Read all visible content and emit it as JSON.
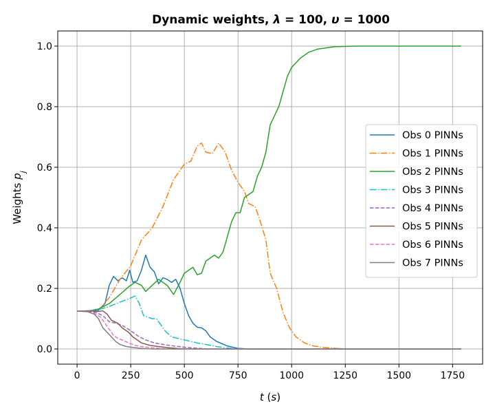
{
  "chart_data": {
    "type": "line",
    "title_parts": [
      {
        "text": "Dynamic weights, ",
        "italic": false
      },
      {
        "text": "λ",
        "italic": true
      },
      {
        "text": " = 100, ",
        "italic": false
      },
      {
        "text": "υ",
        "italic": true
      },
      {
        "text": " = 1000",
        "italic": false
      }
    ],
    "xlabel_parts": [
      {
        "text": "t",
        "italic": true
      },
      {
        "text": " (",
        "italic": false
      },
      {
        "text": "s",
        "italic": true
      },
      {
        "text": ")",
        "italic": false
      }
    ],
    "ylabel_parts": [
      {
        "text": "Weights ",
        "italic": false
      },
      {
        "text": "p",
        "italic": true
      },
      {
        "text": "j",
        "italic": true,
        "sub": true
      }
    ],
    "xlim": [
      -90,
      1890
    ],
    "ylim": [
      -0.05,
      1.05
    ],
    "xticks": [
      0,
      250,
      500,
      750,
      1000,
      1250,
      1500,
      1750
    ],
    "xtick_labels": [
      "0",
      "250",
      "500",
      "750",
      "1000",
      "1250",
      "1500",
      "1750"
    ],
    "yticks": [
      0.0,
      0.2,
      0.4,
      0.6,
      0.8,
      1.0
    ],
    "ytick_labels": [
      "0.0",
      "0.2",
      "0.4",
      "0.6",
      "0.8",
      "1.0"
    ],
    "grid": true,
    "legend_position": "center-right",
    "series": [
      {
        "name": "Obs 0 PINNs",
        "color": "#1f77b4",
        "dash": "solid",
        "points": [
          [
            0,
            0.125
          ],
          [
            50,
            0.124
          ],
          [
            100,
            0.128
          ],
          [
            130,
            0.15
          ],
          [
            150,
            0.21
          ],
          [
            170,
            0.24
          ],
          [
            190,
            0.225
          ],
          [
            210,
            0.235
          ],
          [
            230,
            0.225
          ],
          [
            245,
            0.26
          ],
          [
            260,
            0.22
          ],
          [
            280,
            0.225
          ],
          [
            300,
            0.26
          ],
          [
            320,
            0.31
          ],
          [
            340,
            0.27
          ],
          [
            360,
            0.255
          ],
          [
            380,
            0.215
          ],
          [
            400,
            0.235
          ],
          [
            420,
            0.23
          ],
          [
            440,
            0.22
          ],
          [
            460,
            0.23
          ],
          [
            480,
            0.2
          ],
          [
            500,
            0.15
          ],
          [
            520,
            0.11
          ],
          [
            540,
            0.085
          ],
          [
            560,
            0.072
          ],
          [
            580,
            0.07
          ],
          [
            600,
            0.06
          ],
          [
            620,
            0.04
          ],
          [
            650,
            0.025
          ],
          [
            700,
            0.01
          ],
          [
            750,
            0.002
          ],
          [
            800,
            0.0
          ],
          [
            1790,
            0.0
          ]
        ]
      },
      {
        "name": "Obs 1 PINNs",
        "color": "#ff7f0e",
        "dash": "dashdot",
        "points": [
          [
            0,
            0.125
          ],
          [
            50,
            0.125
          ],
          [
            100,
            0.128
          ],
          [
            150,
            0.17
          ],
          [
            200,
            0.23
          ],
          [
            250,
            0.275
          ],
          [
            300,
            0.36
          ],
          [
            350,
            0.4
          ],
          [
            400,
            0.47
          ],
          [
            450,
            0.56
          ],
          [
            500,
            0.61
          ],
          [
            530,
            0.62
          ],
          [
            560,
            0.67
          ],
          [
            580,
            0.68
          ],
          [
            600,
            0.65
          ],
          [
            630,
            0.645
          ],
          [
            660,
            0.68
          ],
          [
            690,
            0.65
          ],
          [
            720,
            0.59
          ],
          [
            750,
            0.55
          ],
          [
            780,
            0.52
          ],
          [
            800,
            0.48
          ],
          [
            830,
            0.47
          ],
          [
            850,
            0.43
          ],
          [
            880,
            0.36
          ],
          [
            900,
            0.25
          ],
          [
            930,
            0.2
          ],
          [
            960,
            0.12
          ],
          [
            990,
            0.07
          ],
          [
            1020,
            0.04
          ],
          [
            1060,
            0.02
          ],
          [
            1100,
            0.01
          ],
          [
            1150,
            0.005
          ],
          [
            1250,
            0.0
          ],
          [
            1790,
            0.0
          ]
        ]
      },
      {
        "name": "Obs 2 PINNs",
        "color": "#2ca02c",
        "dash": "solid",
        "points": [
          [
            0,
            0.125
          ],
          [
            50,
            0.125
          ],
          [
            100,
            0.132
          ],
          [
            150,
            0.15
          ],
          [
            200,
            0.18
          ],
          [
            240,
            0.205
          ],
          [
            270,
            0.22
          ],
          [
            300,
            0.21
          ],
          [
            320,
            0.19
          ],
          [
            350,
            0.21
          ],
          [
            380,
            0.23
          ],
          [
            420,
            0.21
          ],
          [
            450,
            0.18
          ],
          [
            480,
            0.22
          ],
          [
            500,
            0.25
          ],
          [
            520,
            0.26
          ],
          [
            540,
            0.27
          ],
          [
            560,
            0.245
          ],
          [
            580,
            0.25
          ],
          [
            600,
            0.29
          ],
          [
            620,
            0.3
          ],
          [
            640,
            0.31
          ],
          [
            660,
            0.3
          ],
          [
            680,
            0.32
          ],
          [
            700,
            0.37
          ],
          [
            720,
            0.42
          ],
          [
            740,
            0.45
          ],
          [
            760,
            0.45
          ],
          [
            780,
            0.5
          ],
          [
            800,
            0.51
          ],
          [
            820,
            0.52
          ],
          [
            840,
            0.57
          ],
          [
            860,
            0.6
          ],
          [
            880,
            0.65
          ],
          [
            900,
            0.74
          ],
          [
            920,
            0.77
          ],
          [
            940,
            0.8
          ],
          [
            960,
            0.85
          ],
          [
            980,
            0.9
          ],
          [
            1000,
            0.93
          ],
          [
            1040,
            0.96
          ],
          [
            1080,
            0.98
          ],
          [
            1120,
            0.99
          ],
          [
            1200,
            0.998
          ],
          [
            1300,
            1.0
          ],
          [
            1790,
            1.0
          ]
        ]
      },
      {
        "name": "Obs 3 PINNs",
        "color": "#17becf",
        "dash": "dashdot",
        "points": [
          [
            0,
            0.125
          ],
          [
            50,
            0.125
          ],
          [
            100,
            0.13
          ],
          [
            150,
            0.14
          ],
          [
            200,
            0.155
          ],
          [
            240,
            0.165
          ],
          [
            270,
            0.175
          ],
          [
            290,
            0.15
          ],
          [
            310,
            0.11
          ],
          [
            330,
            0.105
          ],
          [
            350,
            0.1
          ],
          [
            370,
            0.1
          ],
          [
            390,
            0.08
          ],
          [
            410,
            0.06
          ],
          [
            440,
            0.04
          ],
          [
            470,
            0.035
          ],
          [
            500,
            0.03
          ],
          [
            530,
            0.025
          ],
          [
            560,
            0.02
          ],
          [
            600,
            0.015
          ],
          [
            650,
            0.008
          ],
          [
            700,
            0.003
          ],
          [
            750,
            0.0
          ],
          [
            1790,
            0.0
          ]
        ]
      },
      {
        "name": "Obs 4 PINNs",
        "color": "#9467bd",
        "dash": "dashed",
        "points": [
          [
            0,
            0.125
          ],
          [
            50,
            0.125
          ],
          [
            90,
            0.12
          ],
          [
            120,
            0.11
          ],
          [
            150,
            0.09
          ],
          [
            180,
            0.085
          ],
          [
            210,
            0.078
          ],
          [
            240,
            0.065
          ],
          [
            260,
            0.055
          ],
          [
            290,
            0.04
          ],
          [
            320,
            0.03
          ],
          [
            360,
            0.02
          ],
          [
            400,
            0.015
          ],
          [
            450,
            0.01
          ],
          [
            500,
            0.006
          ],
          [
            550,
            0.003
          ],
          [
            620,
            0.0
          ],
          [
            1790,
            0.0
          ]
        ]
      },
      {
        "name": "Obs 5 PINNs",
        "color": "#8c564b",
        "dash": "solid",
        "points": [
          [
            0,
            0.125
          ],
          [
            50,
            0.126
          ],
          [
            100,
            0.124
          ],
          [
            120,
            0.126
          ],
          [
            140,
            0.115
          ],
          [
            160,
            0.095
          ],
          [
            190,
            0.085
          ],
          [
            210,
            0.07
          ],
          [
            240,
            0.055
          ],
          [
            260,
            0.04
          ],
          [
            280,
            0.03
          ],
          [
            300,
            0.02
          ],
          [
            340,
            0.012
          ],
          [
            380,
            0.008
          ],
          [
            430,
            0.004
          ],
          [
            480,
            0.001
          ],
          [
            550,
            0.0
          ],
          [
            1790,
            0.0
          ]
        ]
      },
      {
        "name": "Obs 6 PINNs",
        "color": "#e377c2",
        "dash": "dashed",
        "points": [
          [
            0,
            0.125
          ],
          [
            50,
            0.124
          ],
          [
            80,
            0.118
          ],
          [
            110,
            0.105
          ],
          [
            130,
            0.085
          ],
          [
            150,
            0.065
          ],
          [
            170,
            0.045
          ],
          [
            190,
            0.035
          ],
          [
            210,
            0.03
          ],
          [
            240,
            0.02
          ],
          [
            270,
            0.012
          ],
          [
            300,
            0.008
          ],
          [
            350,
            0.004
          ],
          [
            400,
            0.001
          ],
          [
            450,
            0.0
          ],
          [
            1790,
            0.0
          ]
        ]
      },
      {
        "name": "Obs 7 PINNs",
        "color": "#7f7f7f",
        "dash": "solid",
        "points": [
          [
            0,
            0.125
          ],
          [
            50,
            0.123
          ],
          [
            80,
            0.115
          ],
          [
            100,
            0.1
          ],
          [
            120,
            0.07
          ],
          [
            140,
            0.055
          ],
          [
            160,
            0.04
          ],
          [
            180,
            0.025
          ],
          [
            200,
            0.015
          ],
          [
            230,
            0.008
          ],
          [
            260,
            0.005
          ],
          [
            300,
            0.002
          ],
          [
            350,
            0.0
          ],
          [
            1790,
            0.0
          ]
        ]
      }
    ]
  }
}
